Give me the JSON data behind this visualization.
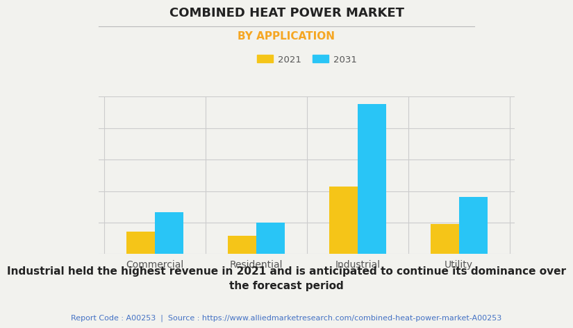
{
  "title": "COMBINED HEAT POWER MARKET",
  "subtitle": "BY APPLICATION",
  "categories": [
    "Commercial",
    "Residential",
    "Industrial",
    "Utility"
  ],
  "values_2021": [
    1.5,
    1.2,
    4.5,
    2.0
  ],
  "values_2031": [
    2.8,
    2.1,
    10.0,
    3.8
  ],
  "color_2021": "#F5C518",
  "color_2031": "#29C5F6",
  "legend_labels": [
    "2021",
    "2031"
  ],
  "background_color": "#F2F2EE",
  "title_fontsize": 13,
  "subtitle_fontsize": 11,
  "subtitle_color": "#F5A623",
  "tick_label_fontsize": 10,
  "footer_text": "Industrial held the highest revenue in 2021 and is anticipated to continue its dominance over\nthe forecast period",
  "footer_fontsize": 11,
  "source_text": "Report Code : A00253  |  Source : https://www.alliedmarketresearch.com/combined-heat-power-market-A00253",
  "source_color": "#4472C4",
  "source_fontsize": 8,
  "bar_width": 0.28,
  "grid_color": "#CCCCCC",
  "title_line_color": "#BBBBBB"
}
